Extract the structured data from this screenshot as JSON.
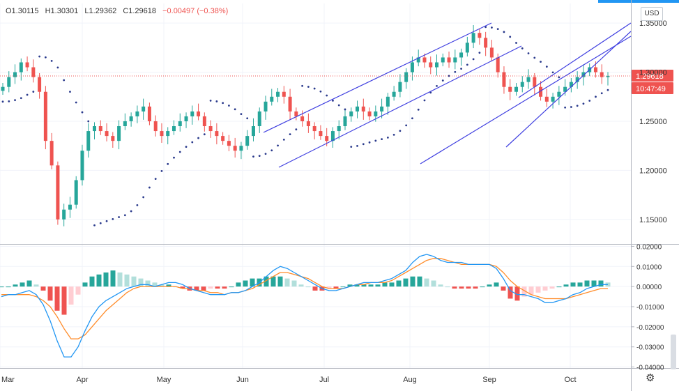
{
  "header": {
    "open": "O1.30115",
    "high": "H1.30301",
    "low": "L1.29362",
    "close": "C1.29618",
    "change": "−0.00497 (−0.38%)"
  },
  "currency_button": "USD",
  "price_label": "1.29618",
  "countdown_label": "10:47:49",
  "settings_icon": "gear-icon",
  "colors": {
    "up": "#26a69a",
    "down": "#ef5350",
    "psar": "#2a3a8c",
    "trendline": "#3f3fe0",
    "macd": "#2196f3",
    "signal": "#ff8c2a",
    "hist_up_strong": "#26a69a",
    "hist_up_weak": "#b2dfdb",
    "hist_down_strong": "#ef5350",
    "hist_down_weak": "#ffcdd2",
    "price_tag": "#ef5350"
  },
  "chart_data": [
    {
      "type": "candlestick",
      "xaxis": {
        "ticks": [
          "Mar",
          "Apr",
          "May",
          "Jun",
          "Jul",
          "Aug",
          "Sep",
          "Oct"
        ]
      },
      "yaxis": {
        "ticks": [
          "1.35000",
          "1.30000",
          "1.25000",
          "1.20000",
          "1.15000"
        ],
        "range": [
          1.125,
          1.37
        ]
      },
      "last_close": 1.29618,
      "closes": [
        1.285,
        1.295,
        1.3,
        1.31,
        1.305,
        1.295,
        1.28,
        1.23,
        1.205,
        1.15,
        1.16,
        1.165,
        1.19,
        1.22,
        1.24,
        1.245,
        1.24,
        1.235,
        1.23,
        1.245,
        1.25,
        1.255,
        1.26,
        1.265,
        1.25,
        1.24,
        1.235,
        1.24,
        1.245,
        1.25,
        1.255,
        1.26,
        1.255,
        1.245,
        1.24,
        1.235,
        1.23,
        1.225,
        1.22,
        1.225,
        1.235,
        1.245,
        1.26,
        1.27,
        1.275,
        1.28,
        1.275,
        1.26,
        1.255,
        1.25,
        1.245,
        1.24,
        1.235,
        1.23,
        1.24,
        1.245,
        1.255,
        1.26,
        1.265,
        1.26,
        1.255,
        1.26,
        1.265,
        1.275,
        1.28,
        1.29,
        1.3,
        1.31,
        1.315,
        1.31,
        1.305,
        1.31,
        1.315,
        1.31,
        1.315,
        1.32,
        1.33,
        1.34,
        1.335,
        1.325,
        1.315,
        1.3,
        1.285,
        1.28,
        1.285,
        1.29,
        1.295,
        1.285,
        1.275,
        1.27,
        1.275,
        1.28,
        1.285,
        1.29,
        1.295,
        1.3,
        1.305,
        1.3,
        1.295,
        1.29618
      ],
      "parabolic_sar": "dotted series above/below price",
      "trendlines": 5
    },
    {
      "type": "macd",
      "yaxis": {
        "ticks": [
          "0.02000",
          "0.01000",
          "0.00000",
          "-0.01000",
          "-0.02000",
          "-0.03000",
          "-0.04000"
        ],
        "range": [
          -0.0405,
          0.0205
        ]
      },
      "macd": [
        -0.005,
        -0.004,
        -0.004,
        -0.003,
        -0.002,
        -0.004,
        -0.009,
        -0.017,
        -0.027,
        -0.035,
        -0.035,
        -0.03,
        -0.022,
        -0.015,
        -0.01,
        -0.007,
        -0.005,
        -0.003,
        -0.001,
        0.0,
        0.001,
        0.001,
        0.0,
        0.001,
        0.002,
        0.002,
        0.001,
        -0.001,
        -0.002,
        -0.003,
        -0.004,
        -0.004,
        -0.004,
        -0.003,
        -0.003,
        -0.002,
        0.0,
        0.002,
        0.005,
        0.008,
        0.01,
        0.009,
        0.007,
        0.005,
        0.003,
        0.001,
        -0.001,
        -0.002,
        -0.002,
        -0.001,
        0.0,
        0.001,
        0.002,
        0.002,
        0.002,
        0.003,
        0.004,
        0.006,
        0.008,
        0.012,
        0.015,
        0.016,
        0.015,
        0.013,
        0.012,
        0.012,
        0.012,
        0.011,
        0.011,
        0.011,
        0.011,
        0.009,
        0.004,
        -0.002,
        -0.004,
        -0.004,
        -0.005,
        -0.006,
        -0.008,
        -0.008,
        -0.007,
        -0.006,
        -0.004,
        -0.003,
        -0.001,
        0.0,
        0.001,
        0.001
      ],
      "signal": [
        -0.004,
        -0.004,
        -0.004,
        -0.004,
        -0.004,
        -0.005,
        -0.007,
        -0.01,
        -0.015,
        -0.021,
        -0.026,
        -0.026,
        -0.024,
        -0.02,
        -0.016,
        -0.012,
        -0.009,
        -0.006,
        -0.003,
        -0.001,
        0.0,
        0.0,
        0.0,
        0.0,
        0.0,
        0.0,
        -0.001,
        -0.001,
        -0.002,
        -0.002,
        -0.003,
        -0.003,
        -0.004,
        -0.003,
        -0.003,
        -0.002,
        -0.001,
        0.001,
        0.003,
        0.005,
        0.007,
        0.007,
        0.006,
        0.005,
        0.004,
        0.002,
        0.0,
        -0.001,
        -0.001,
        -0.001,
        0.0,
        0.001,
        0.001,
        0.002,
        0.002,
        0.002,
        0.003,
        0.005,
        0.007,
        0.009,
        0.011,
        0.013,
        0.014,
        0.014,
        0.013,
        0.012,
        0.011,
        0.011,
        0.011,
        0.011,
        0.011,
        0.01,
        0.007,
        0.003,
        0.0,
        -0.002,
        -0.004,
        -0.005,
        -0.006,
        -0.006,
        -0.006,
        -0.006,
        -0.005,
        -0.004,
        -0.003,
        -0.002,
        -0.001,
        -0.001
      ],
      "histogram": [
        0.0,
        0.0,
        0.001,
        0.002,
        0.003,
        0.001,
        -0.002,
        -0.007,
        -0.012,
        -0.014,
        -0.009,
        -0.004,
        0.002,
        0.005,
        0.006,
        0.007,
        0.008,
        0.007,
        0.006,
        0.005,
        0.004,
        0.003,
        0.002,
        0.001,
        0.001,
        0.0,
        -0.001,
        -0.002,
        -0.002,
        -0.002,
        -0.001,
        -0.001,
        -0.001,
        0.0,
        0.002,
        0.003,
        0.004,
        0.004,
        0.005,
        0.005,
        0.005,
        0.004,
        0.003,
        0.001,
        0.0,
        -0.002,
        -0.002,
        -0.001,
        -0.001,
        0.0,
        0.001,
        0.001,
        0.001,
        0.001,
        0.001,
        0.002,
        0.002,
        0.003,
        0.004,
        0.005,
        0.005,
        0.004,
        0.003,
        0.001,
        0.0,
        -0.001,
        -0.001,
        -0.001,
        -0.001,
        0.0,
        0.001,
        0.002,
        -0.002,
        -0.006,
        -0.007,
        -0.005,
        -0.004,
        -0.003,
        -0.002,
        -0.001,
        0.0,
        0.001,
        0.002,
        0.002,
        0.003,
        0.003,
        0.003,
        0.002
      ]
    }
  ]
}
